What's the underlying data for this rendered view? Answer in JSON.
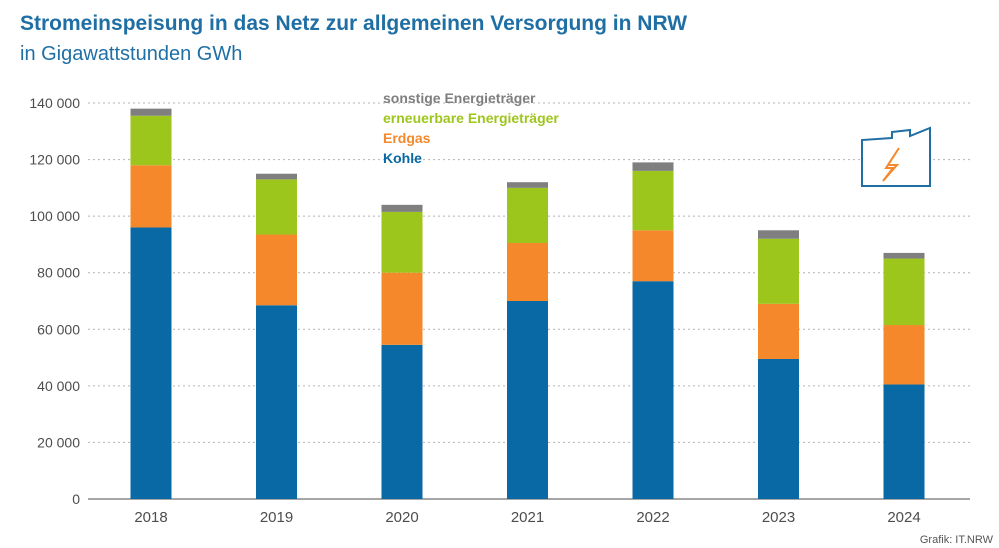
{
  "title": "Stromeinspeisung in das Netz zur allgemeinen Versorgung in NRW",
  "subtitle": "in Gigawattstunden GWh",
  "credit": "Grafik: IT.NRW",
  "icon": "factory-lightning-icon",
  "chart_data": {
    "type": "bar",
    "stacked": true,
    "categories": [
      "2018",
      "2019",
      "2020",
      "2021",
      "2022",
      "2023",
      "2024"
    ],
    "series": [
      {
        "name": "Kohle",
        "color": "#0869a4",
        "values": [
          96000,
          68500,
          54500,
          70000,
          77000,
          49500,
          40500
        ]
      },
      {
        "name": "Erdgas",
        "color": "#f5882a",
        "values": [
          22000,
          25000,
          25500,
          20500,
          18000,
          19500,
          21000
        ]
      },
      {
        "name": "erneuerbare Energieträger",
        "color": "#9dc61d",
        "values": [
          17500,
          19500,
          21500,
          19500,
          21000,
          23000,
          23500
        ]
      },
      {
        "name": "sonstige Energieträger",
        "color": "#7f7f7f",
        "values": [
          2500,
          2000,
          2500,
          2000,
          3000,
          3000,
          2000
        ]
      }
    ],
    "ylim": [
      0,
      140000
    ],
    "yticks": [
      0,
      20000,
      40000,
      60000,
      80000,
      100000,
      120000,
      140000
    ],
    "ytick_labels": [
      "0",
      "20 000",
      "40 000",
      "60 000",
      "80 000",
      "100 000",
      "120 000",
      "140 000"
    ],
    "grid": true,
    "legend_position": "top-center",
    "legend_order": [
      "sonstige Energieträger",
      "erneuerbare Energieträger",
      "Erdgas",
      "Kohle"
    ],
    "axis_color": "#4d4d4d",
    "icon_color": "#1f6fa5",
    "icon_bolt_color": "#f5882a"
  }
}
